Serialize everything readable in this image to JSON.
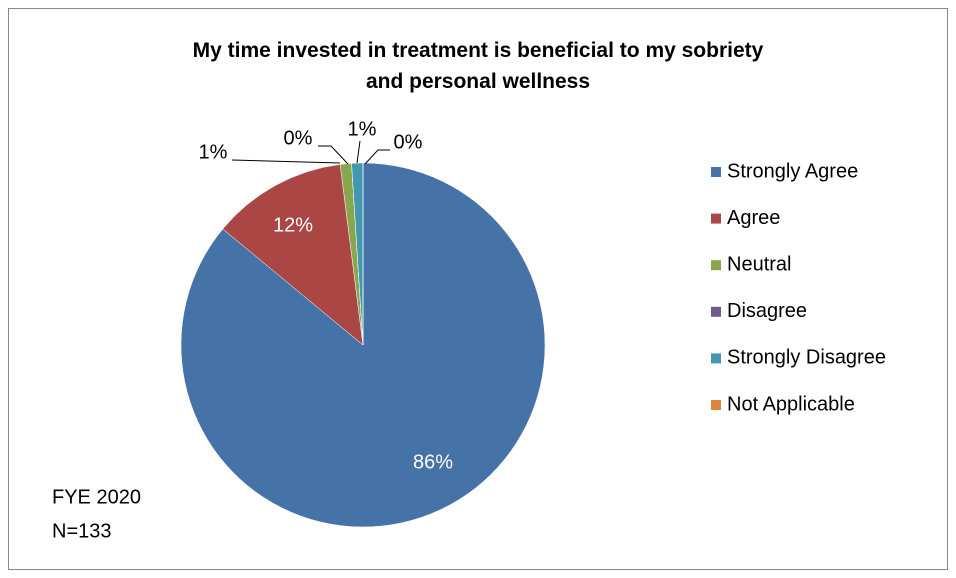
{
  "chart_data": {
    "type": "pie",
    "title": "My time invested in treatment is beneficial to my sobriety and personal wellness",
    "categories": [
      "Strongly Agree",
      "Agree",
      "Neutral",
      "Disagree",
      "Strongly Disagree",
      "Not Applicable"
    ],
    "values": [
      86,
      12,
      1,
      0,
      1,
      0
    ],
    "value_labels": [
      "86%",
      "12%",
      "1%",
      "0%",
      "1%",
      "0%"
    ],
    "colors": [
      "#4572A7",
      "#AA4643",
      "#89A54E",
      "#71588F",
      "#4198AF",
      "#DB843D"
    ],
    "legend": "right",
    "annotations": [
      "FYE 2020",
      "N=133"
    ]
  }
}
